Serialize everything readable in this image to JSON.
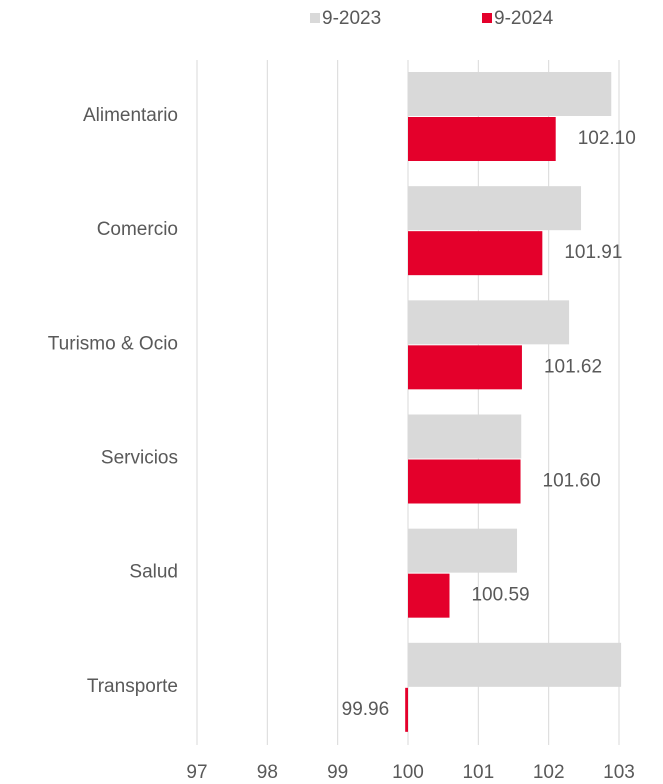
{
  "chart_data": {
    "type": "hbar",
    "categories": [
      "Alimentario",
      "Comercio",
      "Turismo & Ocio",
      "Servicios",
      "Salud",
      "Transporte"
    ],
    "series": [
      {
        "name": "9-2023",
        "color": "#d9d9d9",
        "values": [
          102.89,
          102.46,
          102.29,
          101.61,
          101.55,
          103.03
        ]
      },
      {
        "name": "9-2024",
        "color": "#e4002b",
        "values": [
          102.1,
          101.91,
          101.62,
          101.6,
          100.59,
          99.96
        ],
        "value_labels": [
          "102.10",
          "101.91",
          "101.62",
          "101.60",
          "100.59",
          "99.96"
        ]
      }
    ],
    "baseline": 100,
    "xlim": [
      97,
      103
    ],
    "xticks": [
      97,
      98,
      99,
      100,
      101,
      102,
      103
    ],
    "grid": true,
    "legend": "top"
  }
}
